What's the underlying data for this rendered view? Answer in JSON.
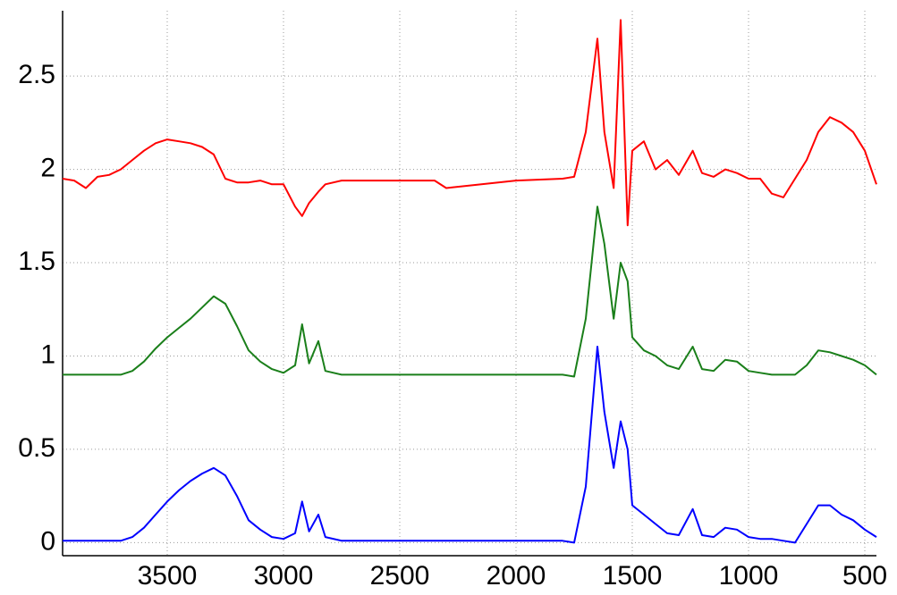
{
  "chart_data": {
    "type": "line",
    "x": [
      3950,
      3900,
      3850,
      3800,
      3750,
      3700,
      3650,
      3600,
      3550,
      3500,
      3450,
      3400,
      3350,
      3300,
      3250,
      3200,
      3150,
      3100,
      3050,
      3000,
      2950,
      2920,
      2890,
      2850,
      2820,
      2750,
      2500,
      2350,
      2300,
      2000,
      1800,
      1750,
      1700,
      1650,
      1620,
      1580,
      1550,
      1520,
      1500,
      1450,
      1400,
      1350,
      1300,
      1240,
      1200,
      1150,
      1100,
      1050,
      1000,
      950,
      900,
      850,
      800,
      750,
      700,
      650,
      600,
      550,
      500,
      450
    ],
    "series": [
      {
        "color": "#ff0000",
        "values": [
          1.95,
          1.94,
          1.9,
          1.96,
          1.97,
          2.0,
          2.05,
          2.1,
          2.14,
          2.16,
          2.15,
          2.14,
          2.12,
          2.08,
          1.95,
          1.93,
          1.93,
          1.94,
          1.92,
          1.92,
          1.8,
          1.75,
          1.82,
          1.88,
          1.92,
          1.94,
          1.94,
          1.94,
          1.9,
          1.94,
          1.95,
          1.96,
          2.2,
          2.7,
          2.2,
          1.9,
          2.8,
          1.7,
          2.1,
          2.15,
          2.0,
          2.05,
          1.97,
          2.1,
          1.98,
          1.96,
          2.0,
          1.98,
          1.95,
          1.95,
          1.87,
          1.85,
          1.95,
          2.05,
          2.2,
          2.28,
          2.25,
          2.2,
          2.1,
          1.92
        ]
      },
      {
        "color": "#1a7f1a",
        "values": [
          0.9,
          0.9,
          0.9,
          0.9,
          0.9,
          0.9,
          0.92,
          0.97,
          1.04,
          1.1,
          1.15,
          1.2,
          1.26,
          1.32,
          1.28,
          1.16,
          1.03,
          0.97,
          0.93,
          0.91,
          0.95,
          1.17,
          0.96,
          1.08,
          0.92,
          0.9,
          0.9,
          0.9,
          0.9,
          0.9,
          0.9,
          0.89,
          1.2,
          1.8,
          1.6,
          1.2,
          1.5,
          1.4,
          1.1,
          1.03,
          1.0,
          0.95,
          0.93,
          1.05,
          0.93,
          0.92,
          0.98,
          0.97,
          0.92,
          0.91,
          0.9,
          0.9,
          0.9,
          0.95,
          1.03,
          1.02,
          1.0,
          0.98,
          0.95,
          0.9
        ]
      },
      {
        "color": "#0000ff",
        "values": [
          0.01,
          0.01,
          0.01,
          0.01,
          0.01,
          0.01,
          0.03,
          0.08,
          0.15,
          0.22,
          0.28,
          0.33,
          0.37,
          0.4,
          0.36,
          0.25,
          0.12,
          0.07,
          0.03,
          0.02,
          0.05,
          0.22,
          0.06,
          0.15,
          0.03,
          0.01,
          0.01,
          0.01,
          0.01,
          0.01,
          0.01,
          0.0,
          0.3,
          1.05,
          0.7,
          0.4,
          0.65,
          0.5,
          0.2,
          0.15,
          0.1,
          0.05,
          0.04,
          0.18,
          0.04,
          0.03,
          0.08,
          0.07,
          0.03,
          0.02,
          0.02,
          0.01,
          0.0,
          0.1,
          0.2,
          0.2,
          0.15,
          0.12,
          0.07,
          0.03
        ]
      }
    ],
    "xlim": [
      3950,
      450
    ],
    "xticks": [
      3500,
      3000,
      2500,
      2000,
      1500,
      1000,
      500
    ],
    "ylim": [
      -0.07,
      2.85
    ],
    "yticks": [
      0,
      0.5,
      1,
      1.5,
      2,
      2.5
    ],
    "grid": true
  }
}
